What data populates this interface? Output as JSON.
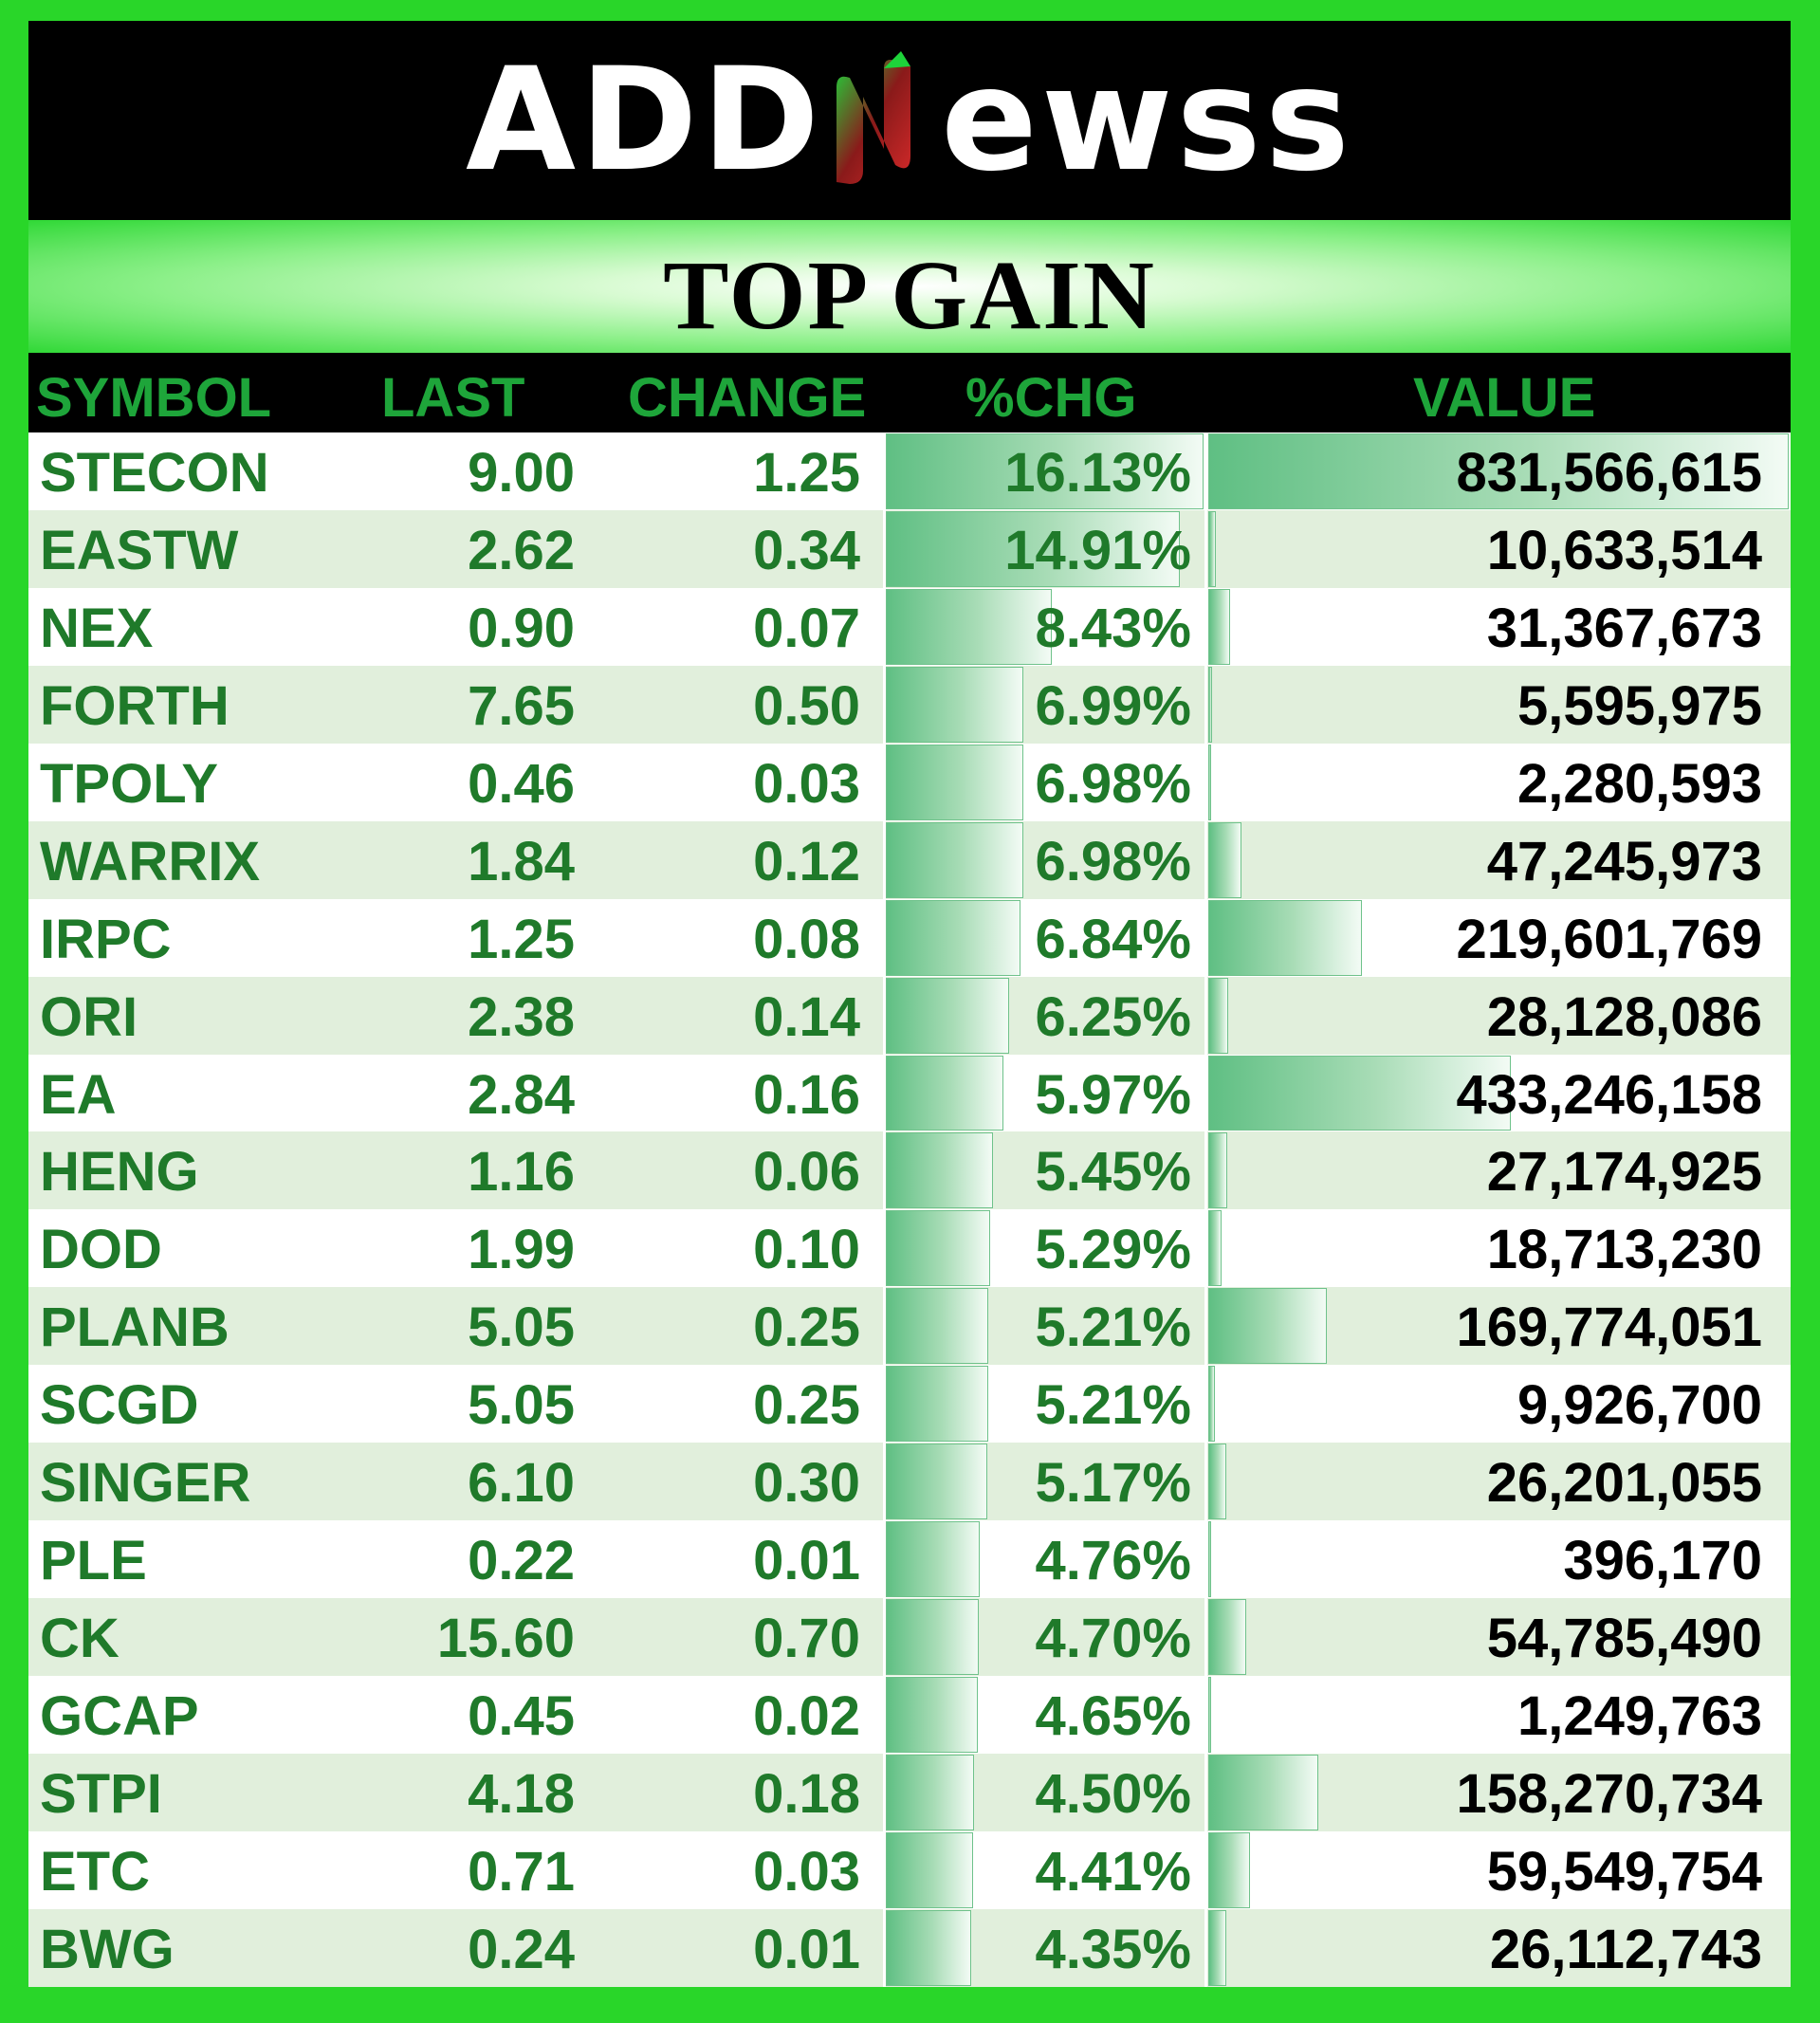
{
  "brand": {
    "logo_text_left": "ADD",
    "logo_text_right": "ewss",
    "logo_n_colors": [
      "#23c43b",
      "#d42a2a"
    ]
  },
  "title": "TOP GAIN",
  "columns": {
    "symbol": "SYMBOL",
    "last": "LAST",
    "change": "CHANGE",
    "pct": "%CHG",
    "value": "VALUE"
  },
  "colors": {
    "background": "#29d629",
    "header_text": "#1ea53a",
    "row_text": "#1f7a2a",
    "value_text": "#000000",
    "bar_fill": "#5fbf83"
  },
  "max_pct": 16.13,
  "max_value": 831566615,
  "rows": [
    {
      "symbol": "STECON",
      "last": "9.00",
      "change": "1.25",
      "pct": "16.13%",
      "pct_num": 16.13,
      "value": "831,566,615",
      "value_num": 831566615
    },
    {
      "symbol": "EASTW",
      "last": "2.62",
      "change": "0.34",
      "pct": "14.91%",
      "pct_num": 14.91,
      "value": "10,633,514",
      "value_num": 10633514
    },
    {
      "symbol": "NEX",
      "last": "0.90",
      "change": "0.07",
      "pct": "8.43%",
      "pct_num": 8.43,
      "value": "31,367,673",
      "value_num": 31367673
    },
    {
      "symbol": "FORTH",
      "last": "7.65",
      "change": "0.50",
      "pct": "6.99%",
      "pct_num": 6.99,
      "value": "5,595,975",
      "value_num": 5595975
    },
    {
      "symbol": "TPOLY",
      "last": "0.46",
      "change": "0.03",
      "pct": "6.98%",
      "pct_num": 6.98,
      "value": "2,280,593",
      "value_num": 2280593
    },
    {
      "symbol": "WARRIX",
      "last": "1.84",
      "change": "0.12",
      "pct": "6.98%",
      "pct_num": 6.98,
      "value": "47,245,973",
      "value_num": 47245973
    },
    {
      "symbol": "IRPC",
      "last": "1.25",
      "change": "0.08",
      "pct": "6.84%",
      "pct_num": 6.84,
      "value": "219,601,769",
      "value_num": 219601769
    },
    {
      "symbol": "ORI",
      "last": "2.38",
      "change": "0.14",
      "pct": "6.25%",
      "pct_num": 6.25,
      "value": "28,128,086",
      "value_num": 28128086
    },
    {
      "symbol": "EA",
      "last": "2.84",
      "change": "0.16",
      "pct": "5.97%",
      "pct_num": 5.97,
      "value": "433,246,158",
      "value_num": 433246158
    },
    {
      "symbol": "HENG",
      "last": "1.16",
      "change": "0.06",
      "pct": "5.45%",
      "pct_num": 5.45,
      "value": "27,174,925",
      "value_num": 27174925
    },
    {
      "symbol": "DOD",
      "last": "1.99",
      "change": "0.10",
      "pct": "5.29%",
      "pct_num": 5.29,
      "value": "18,713,230",
      "value_num": 18713230
    },
    {
      "symbol": "PLANB",
      "last": "5.05",
      "change": "0.25",
      "pct": "5.21%",
      "pct_num": 5.21,
      "value": "169,774,051",
      "value_num": 169774051
    },
    {
      "symbol": "SCGD",
      "last": "5.05",
      "change": "0.25",
      "pct": "5.21%",
      "pct_num": 5.21,
      "value": "9,926,700",
      "value_num": 9926700
    },
    {
      "symbol": "SINGER",
      "last": "6.10",
      "change": "0.30",
      "pct": "5.17%",
      "pct_num": 5.17,
      "value": "26,201,055",
      "value_num": 26201055
    },
    {
      "symbol": "PLE",
      "last": "0.22",
      "change": "0.01",
      "pct": "4.76%",
      "pct_num": 4.76,
      "value": "396,170",
      "value_num": 396170
    },
    {
      "symbol": "CK",
      "last": "15.60",
      "change": "0.70",
      "pct": "4.70%",
      "pct_num": 4.7,
      "value": "54,785,490",
      "value_num": 54785490
    },
    {
      "symbol": "GCAP",
      "last": "0.45",
      "change": "0.02",
      "pct": "4.65%",
      "pct_num": 4.65,
      "value": "1,249,763",
      "value_num": 1249763
    },
    {
      "symbol": "STPI",
      "last": "4.18",
      "change": "0.18",
      "pct": "4.50%",
      "pct_num": 4.5,
      "value": "158,270,734",
      "value_num": 158270734
    },
    {
      "symbol": "ETC",
      "last": "0.71",
      "change": "0.03",
      "pct": "4.41%",
      "pct_num": 4.41,
      "value": "59,549,754",
      "value_num": 59549754
    },
    {
      "symbol": "BWG",
      "last": "0.24",
      "change": "0.01",
      "pct": "4.35%",
      "pct_num": 4.35,
      "value": "26,112,743",
      "value_num": 26112743
    }
  ]
}
